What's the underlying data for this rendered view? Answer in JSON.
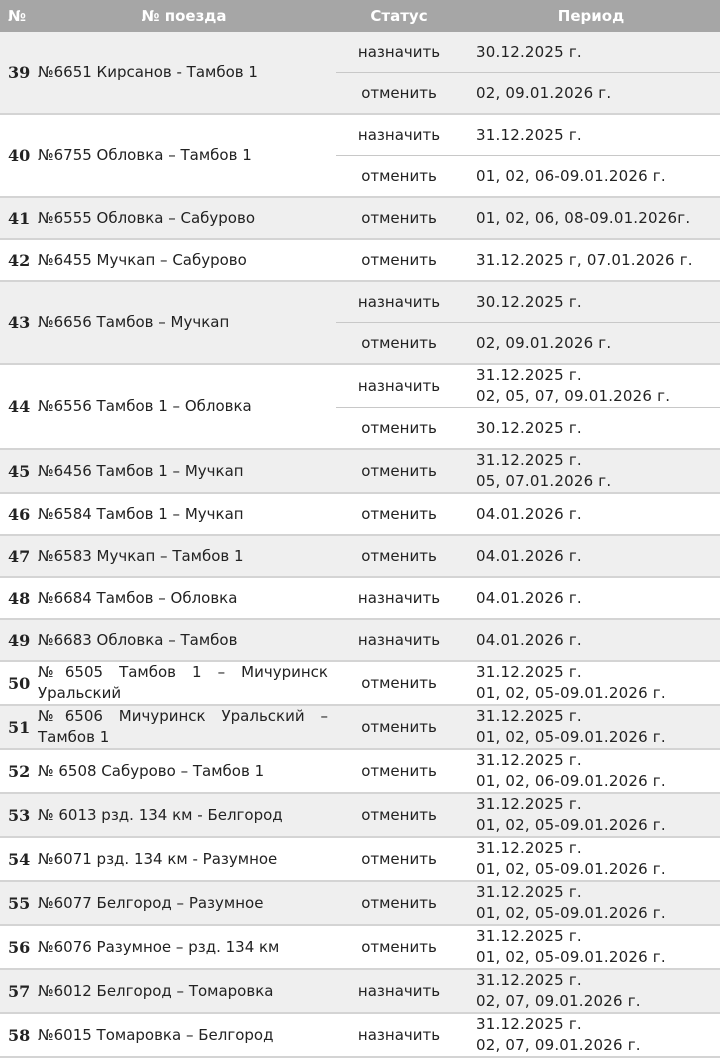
{
  "header": {
    "num": "№",
    "train": "№ поезда",
    "status": "Статус",
    "period": "Период"
  },
  "colors": {
    "header_bg": "#a6a6a6",
    "row_alt_bg": "#efefef",
    "border": "#d4d4d4"
  },
  "rows": [
    {
      "num": "39",
      "train": "№6651 Кирсанов - Тамбов 1",
      "entries": [
        {
          "status": "назначить",
          "period": [
            "30.12.2025 г."
          ]
        },
        {
          "status": "отменить",
          "period": [
            "02, 09.01.2026 г."
          ]
        }
      ]
    },
    {
      "num": "40",
      "train": "№6755 Обловка – Тамбов 1",
      "entries": [
        {
          "status": "назначить",
          "period": [
            "31.12.2025 г."
          ]
        },
        {
          "status": "отменить",
          "period": [
            "01, 02, 06-09.01.2026 г."
          ]
        }
      ]
    },
    {
      "num": "41",
      "train": "№6555 Обловка – Сабурово",
      "entries": [
        {
          "status": "отменить",
          "period": [
            "01, 02, 06, 08-09.01.2026г."
          ]
        }
      ]
    },
    {
      "num": "42",
      "train": "№6455 Мучкап – Сабурово",
      "entries": [
        {
          "status": "отменить",
          "period": [
            "31.12.2025 г, 07.01.2026 г."
          ]
        }
      ]
    },
    {
      "num": "43",
      "train": "№6656 Тамбов – Мучкап",
      "entries": [
        {
          "status": "назначить",
          "period": [
            "30.12.2025 г."
          ]
        },
        {
          "status": "отменить",
          "period": [
            "02, 09.01.2026 г."
          ]
        }
      ]
    },
    {
      "num": "44",
      "train": "№6556 Тамбов 1 – Обловка",
      "entries": [
        {
          "status": "назначить",
          "period": [
            "31.12.2025 г.",
            "02, 05, 07, 09.01.2026 г."
          ]
        },
        {
          "status": "отменить",
          "period": [
            "30.12.2025 г."
          ]
        }
      ]
    },
    {
      "num": "45",
      "train": "№6456 Тамбов 1 – Мучкап",
      "entries": [
        {
          "status": "отменить",
          "period": [
            "31.12.2025 г.",
            "05, 07.01.2026 г."
          ]
        }
      ]
    },
    {
      "num": "46",
      "train": "№6584 Тамбов 1 – Мучкап",
      "entries": [
        {
          "status": "отменить",
          "period": [
            "04.01.2026 г."
          ]
        }
      ]
    },
    {
      "num": "47",
      "train": "№6583 Мучкап – Тамбов 1",
      "entries": [
        {
          "status": "отменить",
          "period": [
            "04.01.2026 г."
          ]
        }
      ]
    },
    {
      "num": "48",
      "train": "№6684 Тамбов – Обловка",
      "entries": [
        {
          "status": "назначить",
          "period": [
            "04.01.2026 г."
          ]
        }
      ]
    },
    {
      "num": "49",
      "train": "№6683 Обловка – Тамбов",
      "entries": [
        {
          "status": "назначить",
          "period": [
            "04.01.2026 г."
          ]
        }
      ]
    },
    {
      "num": "50",
      "train": "№6505 Тамбов 1 – Мичуринск Уральский",
      "justify": true,
      "entries": [
        {
          "status": "отменить",
          "period": [
            "31.12.2025 г.",
            "01, 02, 05-09.01.2026 г."
          ]
        }
      ]
    },
    {
      "num": "51",
      "train": "№6506 Мичуринск Уральский – Тамбов 1",
      "justify": true,
      "entries": [
        {
          "status": "отменить",
          "period": [
            "31.12.2025 г.",
            "01, 02, 05-09.01.2026 г."
          ]
        }
      ]
    },
    {
      "num": "52",
      "train": "№ 6508 Сабурово – Тамбов 1",
      "entries": [
        {
          "status": "отменить",
          "period": [
            "31.12.2025 г.",
            "01, 02, 06-09.01.2026 г."
          ]
        }
      ]
    },
    {
      "num": "53",
      "train": "№ 6013 рзд. 134 км - Белгород",
      "entries": [
        {
          "status": "отменить",
          "period": [
            "31.12.2025 г.",
            "01, 02, 05-09.01.2026 г."
          ]
        }
      ]
    },
    {
      "num": "54",
      "train": "№6071 рзд. 134 км - Разумное",
      "entries": [
        {
          "status": "отменить",
          "period": [
            "31.12.2025 г.",
            "01, 02, 05-09.01.2026 г."
          ]
        }
      ]
    },
    {
      "num": "55",
      "train": "№6077 Белгород – Разумное",
      "entries": [
        {
          "status": "отменить",
          "period": [
            "31.12.2025 г.",
            "01, 02, 05-09.01.2026 г."
          ]
        }
      ]
    },
    {
      "num": "56",
      "train": "№6076 Разумное – рзд. 134 км",
      "entries": [
        {
          "status": "отменить",
          "period": [
            "31.12.2025 г.",
            "01, 02, 05-09.01.2026 г."
          ]
        }
      ]
    },
    {
      "num": "57",
      "train": "№6012 Белгород – Томаровка",
      "entries": [
        {
          "status": "назначить",
          "period": [
            "31.12.2025 г.",
            "02, 07, 09.01.2026 г."
          ]
        }
      ]
    },
    {
      "num": "58",
      "train": "№6015 Томаровка – Белгород",
      "entries": [
        {
          "status": "назначить",
          "period": [
            "31.12.2025 г.",
            "02, 07, 09.01.2026 г."
          ]
        }
      ]
    }
  ]
}
